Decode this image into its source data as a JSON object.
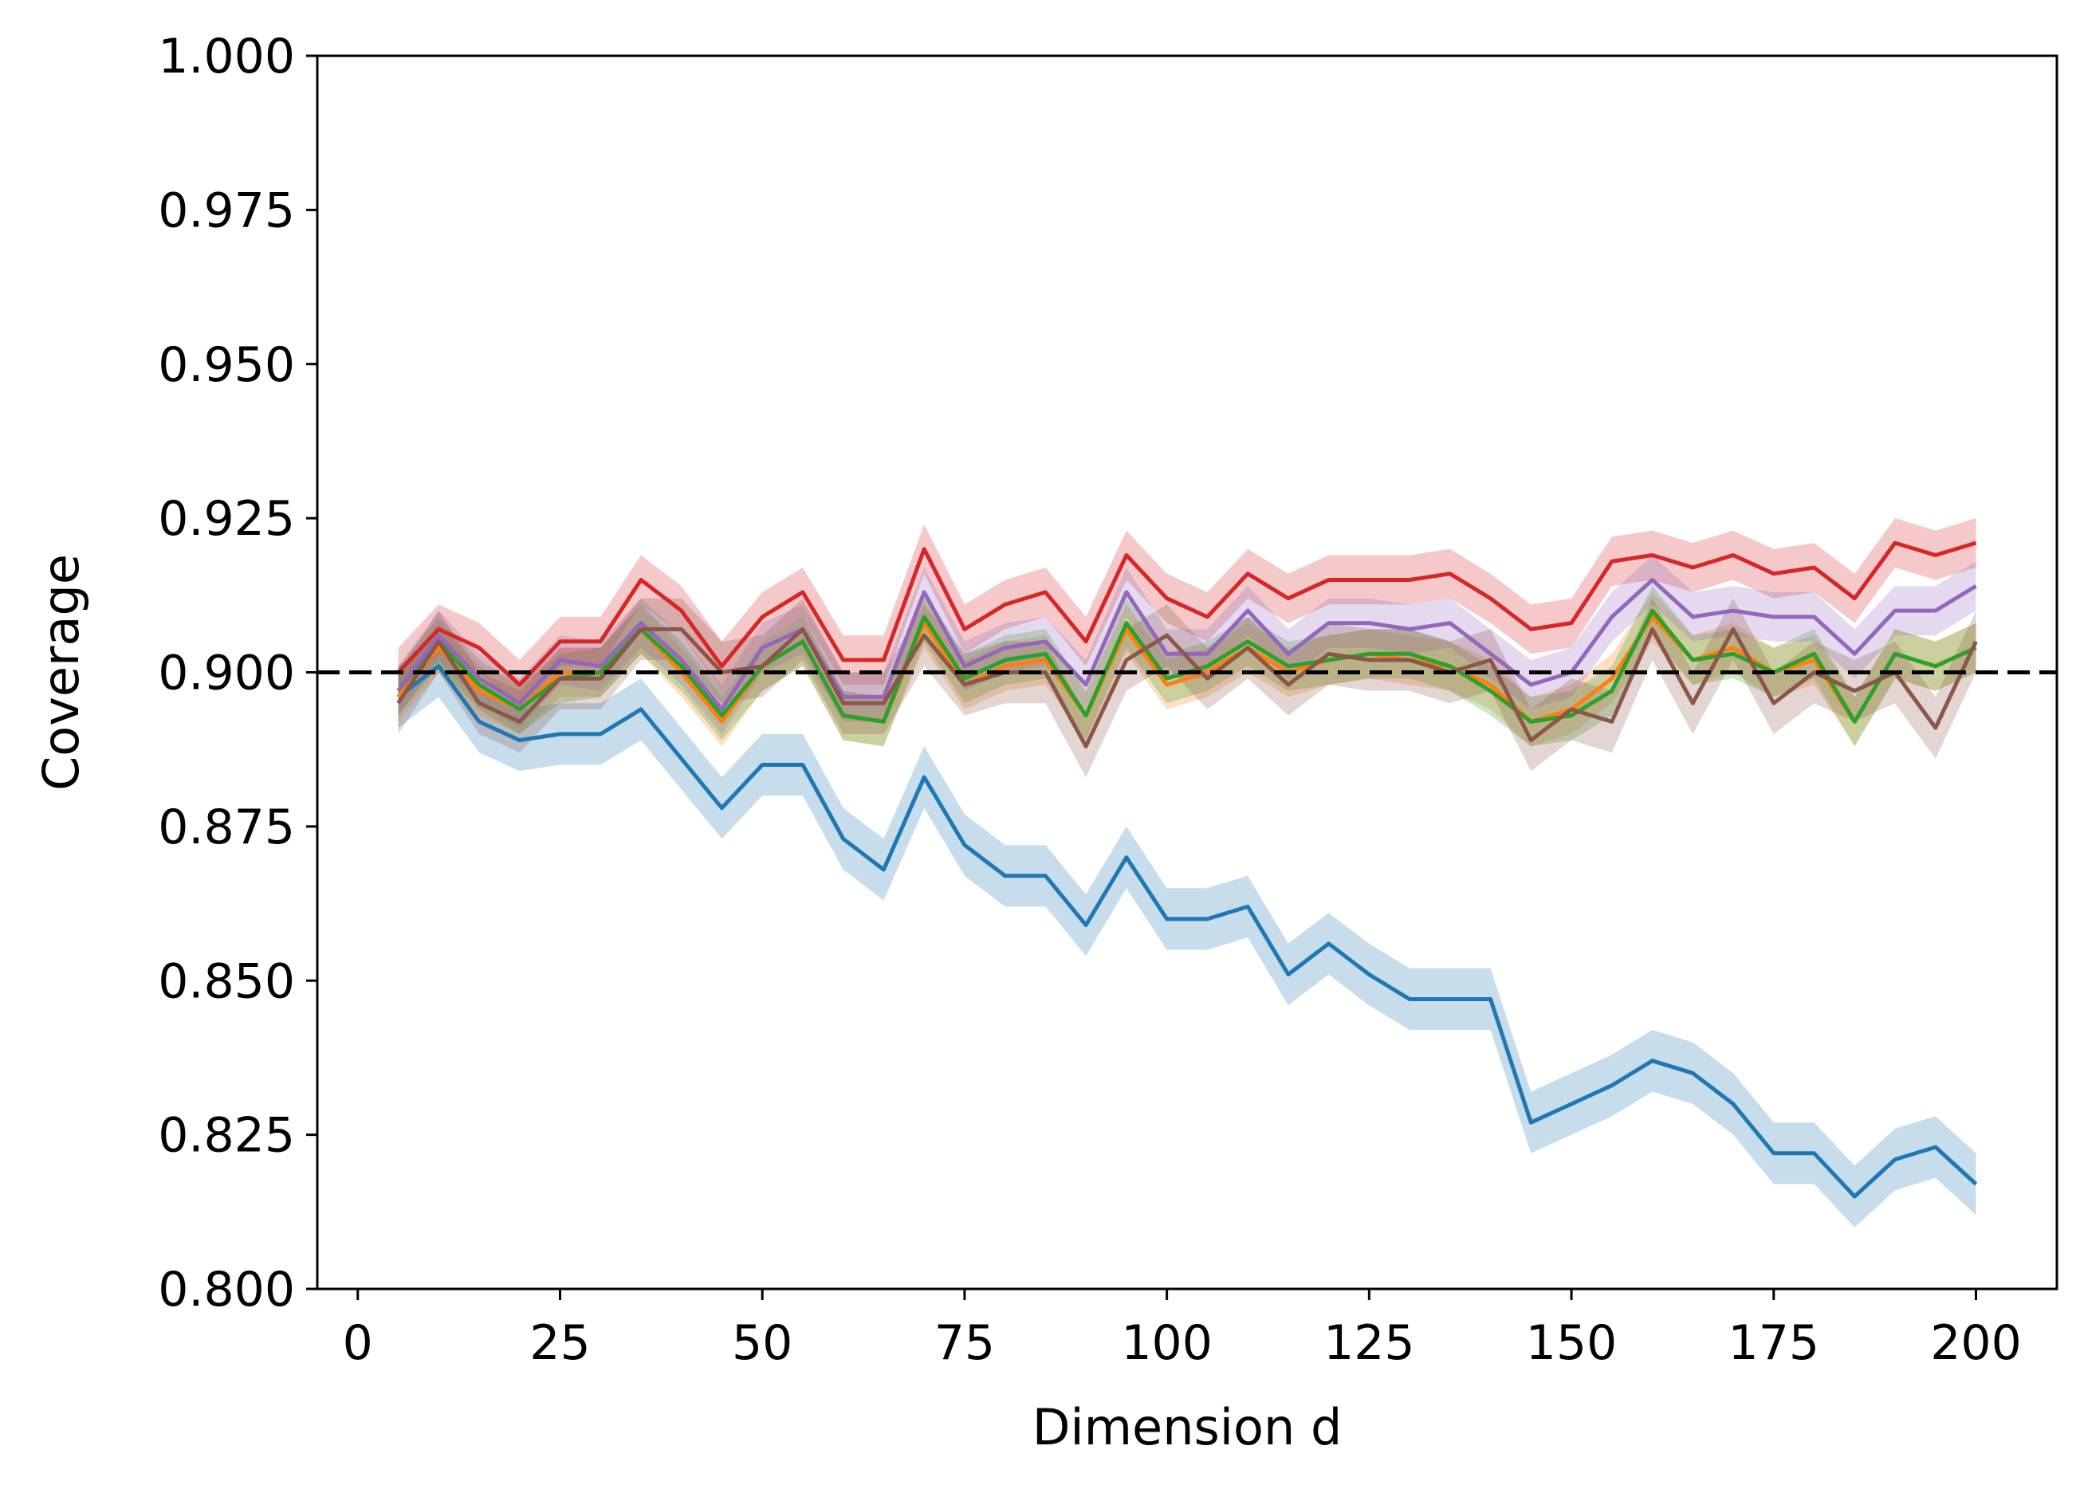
{
  "chart_data": {
    "type": "line",
    "title": "",
    "xlabel": "Dimension d",
    "ylabel": "Coverage",
    "xlim": [
      -5,
      210
    ],
    "ylim": [
      0.8,
      1.0
    ],
    "xticks": [
      0,
      25,
      50,
      75,
      100,
      125,
      150,
      175,
      200
    ],
    "xtick_labels": [
      "0",
      "25",
      "50",
      "75",
      "100",
      "125",
      "150",
      "175",
      "200"
    ],
    "yticks": [
      0.8,
      0.825,
      0.85,
      0.875,
      0.9,
      0.925,
      0.95,
      0.975,
      1.0
    ],
    "ytick_labels": [
      "0.800",
      "0.825",
      "0.850",
      "0.875",
      "0.900",
      "0.925",
      "0.950",
      "0.975",
      "1.000"
    ],
    "grid": false,
    "reference_line": {
      "y": 0.9,
      "style": "dashed",
      "color": "#000000"
    },
    "x": [
      5,
      10,
      15,
      20,
      25,
      30,
      35,
      40,
      45,
      50,
      55,
      60,
      65,
      70,
      75,
      80,
      85,
      90,
      95,
      100,
      105,
      110,
      115,
      120,
      125,
      130,
      135,
      140,
      145,
      150,
      155,
      160,
      165,
      170,
      175,
      180,
      185,
      190,
      195,
      200
    ],
    "series": [
      {
        "color": "#1f77b4",
        "band": 0.005,
        "values": [
          0.896,
          0.901,
          0.892,
          0.889,
          0.89,
          0.89,
          0.894,
          0.886,
          0.878,
          0.885,
          0.885,
          0.873,
          0.868,
          0.883,
          0.872,
          0.867,
          0.867,
          0.859,
          0.87,
          0.86,
          0.86,
          0.862,
          0.851,
          0.856,
          0.851,
          0.847,
          0.847,
          0.847,
          0.827,
          0.83,
          0.833,
          0.837,
          0.835,
          0.83,
          0.822,
          0.822,
          0.815,
          0.821,
          0.823,
          0.817
        ]
      },
      {
        "color": "#ff7f0e",
        "band": 0.004,
        "values": [
          0.896,
          0.904,
          0.897,
          0.894,
          0.9,
          0.9,
          0.907,
          0.9,
          0.892,
          0.901,
          0.905,
          0.893,
          0.892,
          0.908,
          0.898,
          0.901,
          0.902,
          0.893,
          0.907,
          0.898,
          0.9,
          0.904,
          0.9,
          0.902,
          0.903,
          0.902,
          0.901,
          0.898,
          0.892,
          0.894,
          0.899,
          0.909,
          0.902,
          0.904,
          0.9,
          0.902,
          0.892,
          0.903,
          0.901,
          0.904
        ]
      },
      {
        "color": "#2ca02c",
        "band": 0.004,
        "values": [
          0.897,
          0.905,
          0.898,
          0.894,
          0.899,
          0.9,
          0.907,
          0.901,
          0.893,
          0.901,
          0.905,
          0.893,
          0.892,
          0.909,
          0.899,
          0.902,
          0.903,
          0.893,
          0.908,
          0.899,
          0.901,
          0.905,
          0.901,
          0.902,
          0.903,
          0.903,
          0.901,
          0.897,
          0.892,
          0.893,
          0.897,
          0.91,
          0.902,
          0.903,
          0.9,
          0.903,
          0.892,
          0.903,
          0.901,
          0.904
        ]
      },
      {
        "color": "#d62728",
        "band": 0.004,
        "values": [
          0.9,
          0.907,
          0.904,
          0.898,
          0.905,
          0.905,
          0.915,
          0.91,
          0.901,
          0.909,
          0.913,
          0.902,
          0.902,
          0.92,
          0.907,
          0.911,
          0.913,
          0.905,
          0.919,
          0.912,
          0.909,
          0.916,
          0.912,
          0.915,
          0.915,
          0.915,
          0.916,
          0.912,
          0.907,
          0.908,
          0.918,
          0.919,
          0.917,
          0.919,
          0.916,
          0.917,
          0.912,
          0.921,
          0.919,
          0.921
        ]
      },
      {
        "color": "#9467bd",
        "band": 0.004,
        "values": [
          0.897,
          0.906,
          0.899,
          0.895,
          0.902,
          0.901,
          0.908,
          0.902,
          0.894,
          0.904,
          0.907,
          0.896,
          0.896,
          0.913,
          0.901,
          0.904,
          0.905,
          0.898,
          0.913,
          0.903,
          0.903,
          0.91,
          0.903,
          0.908,
          0.908,
          0.907,
          0.908,
          0.903,
          0.898,
          0.9,
          0.909,
          0.915,
          0.909,
          0.91,
          0.909,
          0.909,
          0.903,
          0.91,
          0.91,
          0.914
        ]
      },
      {
        "color": "#8c564b",
        "band": 0.005,
        "values": [
          0.895,
          0.905,
          0.895,
          0.892,
          0.899,
          0.899,
          0.907,
          0.907,
          0.9,
          0.901,
          0.907,
          0.895,
          0.895,
          0.906,
          0.898,
          0.9,
          0.9,
          0.888,
          0.902,
          0.906,
          0.899,
          0.904,
          0.898,
          0.903,
          0.902,
          0.902,
          0.9,
          0.902,
          0.889,
          0.894,
          0.892,
          0.907,
          0.895,
          0.907,
          0.895,
          0.9,
          0.897,
          0.9,
          0.891,
          0.905
        ]
      }
    ]
  }
}
